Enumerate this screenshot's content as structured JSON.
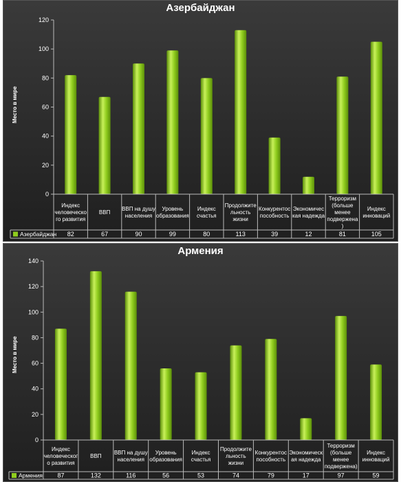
{
  "charts": [
    {
      "title": "Азербайджан",
      "ylabel": "Место в мире",
      "series_name": "Азербайджан",
      "ylim": [
        0,
        120
      ],
      "yticks": [
        "0",
        "20",
        "40",
        "60",
        "80",
        "100",
        "120"
      ],
      "categories": [
        [
          "Индекс",
          "человеческо",
          "го развития"
        ],
        [
          "ВВП"
        ],
        [
          "ВВП на душу",
          "населения"
        ],
        [
          "Уровень",
          "образования"
        ],
        [
          "Индекс",
          "счастья"
        ],
        [
          "Продолжите",
          "льность",
          "жизни"
        ],
        [
          "Конкурентос",
          "пособность"
        ],
        [
          "Экономичес",
          "кая надежда"
        ],
        [
          "Терроризм",
          "(больше",
          "менее",
          "подвержена",
          ")"
        ],
        [
          "Индекс",
          "инноваций"
        ]
      ],
      "values": [
        82,
        67,
        90,
        99,
        80,
        113,
        39,
        12,
        81,
        105
      ]
    },
    {
      "title": "Армения",
      "ylabel": "Место в мире",
      "series_name": "Армения",
      "ylim": [
        0,
        140
      ],
      "yticks": [
        "0",
        "20",
        "40",
        "60",
        "80",
        "100",
        "120",
        "140"
      ],
      "categories": [
        [
          "Индекс",
          "человеческог",
          "о развития"
        ],
        [
          "ВВП"
        ],
        [
          "ВВП на душу",
          "населения"
        ],
        [
          "Уровень",
          "образования"
        ],
        [
          "Индекс",
          "счастья"
        ],
        [
          "Продолжите",
          "льность",
          "жизни"
        ],
        [
          "Конкурентос",
          "пособность"
        ],
        [
          "Экономическ",
          "ая надежда"
        ],
        [
          "Терроризм",
          "(больше",
          "менее",
          "подвержена)"
        ],
        [
          "Индекс",
          "инноваций"
        ]
      ],
      "values": [
        87,
        132,
        116,
        56,
        53,
        74,
        79,
        17,
        97,
        59
      ]
    }
  ],
  "chart_data": [
    {
      "type": "bar",
      "title": "Азербайджан",
      "ylabel": "Место в мире",
      "ylim": [
        0,
        120
      ],
      "categories": [
        "Индекс человеческого развития",
        "ВВП",
        "ВВП на душу населения",
        "Уровень образования",
        "Индекс счастья",
        "Продолжительность жизни",
        "Конкурентоспособность",
        "Экономическая надежда",
        "Терроризм (больше менее подвержена)",
        "Индекс инноваций"
      ],
      "series": [
        {
          "name": "Азербайджан",
          "values": [
            82,
            67,
            90,
            99,
            80,
            113,
            39,
            12,
            81,
            105
          ]
        }
      ]
    },
    {
      "type": "bar",
      "title": "Армения",
      "ylabel": "Место в мире",
      "ylim": [
        0,
        140
      ],
      "categories": [
        "Индекс человеческого развития",
        "ВВП",
        "ВВП на душу населения",
        "Уровень образования",
        "Индекс счастья",
        "Продолжительность жизни",
        "Конкурентоспособность",
        "Экономическая надежда",
        "Терроризм (больше менее подвержена)",
        "Индекс инноваций"
      ],
      "series": [
        {
          "name": "Армения",
          "values": [
            87,
            132,
            116,
            56,
            53,
            74,
            79,
            17,
            97,
            59
          ]
        }
      ]
    }
  ],
  "colors": {
    "bar_light": "#c8f05a",
    "bar_mid": "#8fcc1e",
    "bar_dark": "#5c8f0a",
    "axis": "#bbbbbb",
    "grid": "#555555",
    "text": "#ffffff"
  }
}
